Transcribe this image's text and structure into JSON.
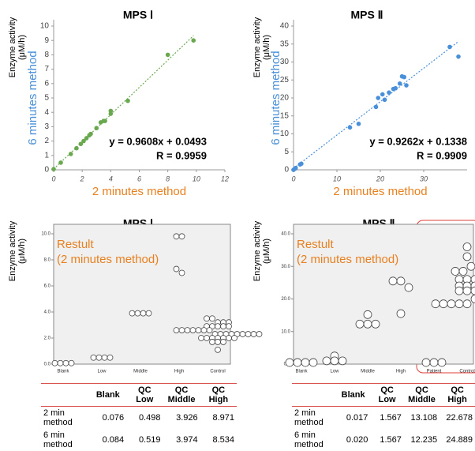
{
  "chart_data": [
    {
      "type": "scatter",
      "title": "MPS Ⅰ",
      "ylabel_lines": [
        "Enzyme activity",
        "(μM/h)"
      ],
      "ylabel2": "6 minutes method",
      "xlabel": "2 minutes method",
      "annotations": [
        "y = 0.9608x + 0.0493",
        "R = 0.9959"
      ],
      "color": "#6aa84f",
      "x": [
        0,
        0.5,
        1.2,
        1.6,
        1.9,
        2.1,
        2.3,
        2.5,
        2.6,
        3.0,
        3.3,
        3.5,
        3.6,
        4.0,
        4.0,
        5.2,
        8.0,
        9.8
      ],
      "values": [
        0.05,
        0.5,
        1.1,
        1.5,
        1.8,
        2.0,
        2.2,
        2.4,
        2.5,
        2.9,
        3.3,
        3.4,
        3.4,
        3.9,
        4.1,
        4.8,
        8.0,
        9.0
      ],
      "xlim": [
        0,
        12
      ],
      "xticks": [
        0,
        2,
        4,
        6,
        8,
        10,
        12
      ],
      "ylim": [
        0,
        10
      ],
      "yticks": [
        0,
        1,
        2,
        3,
        4,
        5,
        6,
        7,
        8,
        9,
        10
      ]
    },
    {
      "type": "scatter",
      "title": "MPS Ⅱ",
      "ylabel_lines": [
        "Enzyme activity",
        "(μM/h)"
      ],
      "ylabel2": "6 minutes method",
      "xlabel": "2 minutes method",
      "annotations": [
        "y = 0.9262x + 0.1338",
        "R = 0.9909"
      ],
      "color": "#4a90d9",
      "x": [
        0,
        0.3,
        0.5,
        1.5,
        1.8,
        13,
        15,
        19,
        19.5,
        20.5,
        21,
        22,
        23,
        23.5,
        24.5,
        25,
        25.5,
        26,
        36,
        38
      ],
      "values": [
        0,
        0.3,
        0.5,
        1.5,
        1.7,
        11.8,
        12.8,
        17.5,
        20,
        21,
        19.5,
        21.5,
        22.5,
        22.7,
        24,
        26,
        25.8,
        23.5,
        34.2,
        31.5
      ],
      "xlim": [
        0,
        40
      ],
      "xticks": [
        0,
        10,
        20,
        30
      ],
      "ylim": [
        0,
        40
      ],
      "yticks": [
        0,
        5,
        10,
        15,
        20,
        25,
        30,
        35,
        40
      ]
    },
    {
      "type": "dotplot",
      "title": "MPS Ⅰ",
      "ylabel_lines": [
        "Enzyme activity",
        "(μM/h)"
      ],
      "annotation_lines": [
        "Restult",
        "(2 minutes method)"
      ],
      "categories": [
        "Blank",
        "Low",
        "Middle",
        "High",
        "Control"
      ],
      "groups": [
        [
          0.076,
          0.076,
          0.076,
          0.076
        ],
        [
          0.5,
          0.5,
          0.5,
          0.5
        ],
        [
          3.9,
          3.9,
          3.9,
          3.9
        ],
        [
          9.8,
          9.8,
          7.3,
          7.0
        ],
        [
          3.5,
          3.5,
          3.2,
          3.2,
          3.2,
          2.9,
          2.9,
          2.9,
          2.9,
          2.9,
          2.6,
          2.6,
          2.6,
          2.6,
          2.6,
          2.6,
          2.6,
          2.3,
          2.3,
          2.3,
          2.3,
          2.3,
          2.3,
          2.3,
          2.3,
          2.3,
          2.0,
          2.0,
          2.0,
          2.0,
          2.0,
          2.0,
          2.0,
          1.7,
          1.7,
          1.7,
          1.1
        ]
      ],
      "ylim": [
        0,
        10
      ],
      "yticks": [
        {
          "value": 0,
          "label": "0.0"
        },
        {
          "value": 2,
          "label": "2.0"
        },
        {
          "value": 4,
          "label": "4.0"
        },
        {
          "value": 6,
          "label": "6.0"
        },
        {
          "value": 8,
          "label": "8.0"
        },
        {
          "value": 10,
          "label": "10.0"
        }
      ]
    },
    {
      "type": "dotplot",
      "title": "MPS Ⅱ",
      "ylabel_lines": [
        "Enzyme activity",
        "(μM/h)"
      ],
      "annotation_lines": [
        "Restult",
        "(2 minutes method)"
      ],
      "categories": [
        "Blank",
        "Low",
        "Middle",
        "High",
        "Patient",
        "Control"
      ],
      "groups": [
        [
          0.5,
          0.5,
          0.5,
          0.5
        ],
        [
          1.0,
          1.0,
          1.0,
          2.5
        ],
        [
          12.3,
          12.3,
          12.3,
          15.2
        ],
        [
          25.5,
          25.5,
          23.5,
          15.5
        ],
        [
          0.5,
          0.5,
          0.5
        ],
        [
          18.5,
          18.5,
          18.5,
          18.5,
          18.5,
          20,
          20,
          20,
          20,
          22.5,
          22.5,
          22.5,
          24,
          24,
          24,
          26,
          26,
          26,
          28.5,
          28.5,
          30,
          30,
          33,
          36
        ]
      ],
      "ylim": [
        0,
        40
      ],
      "yticks": [
        {
          "value": 0,
          "label": "0.0"
        },
        {
          "value": 10,
          "label": "10.0"
        },
        {
          "value": 20,
          "label": "20.0"
        },
        {
          "value": 30,
          "label": "30.0"
        },
        {
          "value": 40,
          "label": "40.0"
        }
      ]
    }
  ],
  "tables": [
    {
      "columns": [
        "Blank",
        "QC Low",
        "QC Middle",
        "QC High"
      ],
      "rows": [
        {
          "label": "2 min method",
          "values": [
            "0.076",
            "0.498",
            "3.926",
            "8.971"
          ]
        },
        {
          "label": "6 min method",
          "values": [
            "0.084",
            "0.519",
            "3.974",
            "8.534"
          ]
        }
      ]
    },
    {
      "columns": [
        "Blank",
        "QC Low",
        "QC Middle",
        "QC High"
      ],
      "rows": [
        {
          "label": "2 min method",
          "values": [
            "0.017",
            "1.567",
            "13.108",
            "22.678"
          ]
        },
        {
          "label": "6 min method",
          "values": [
            "0.020",
            "1.567",
            "12.235",
            "24.889"
          ]
        }
      ]
    }
  ]
}
